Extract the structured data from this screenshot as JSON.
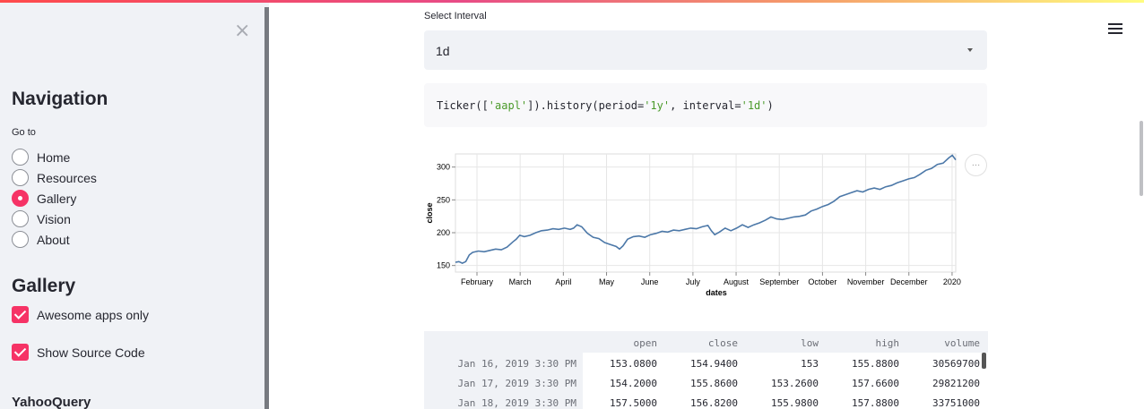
{
  "sidebar": {
    "nav_title": "Navigation",
    "goto_label": "Go to",
    "pages": [
      {
        "label": "Home",
        "selected": false
      },
      {
        "label": "Resources",
        "selected": false
      },
      {
        "label": "Gallery",
        "selected": true
      },
      {
        "label": "Vision",
        "selected": false
      },
      {
        "label": "About",
        "selected": false
      }
    ],
    "gallery_title": "Gallery",
    "awesome_apps_label": "Awesome apps only",
    "show_source_label": "Show Source Code",
    "yahooquery_title": "YahooQuery"
  },
  "main": {
    "interval_label": "Select Interval",
    "interval_value": "1d",
    "code": {
      "prefix": "Ticker([",
      "ticker": "'aapl'",
      "middle": "]).history(period=",
      "period": "'1y'",
      "middle2": ", interval=",
      "interval": "'1d'",
      "suffix": ")"
    },
    "chart_menu_icon": "…"
  },
  "chart_data": {
    "type": "line",
    "xlabel": "dates",
    "ylabel": "close",
    "ylim": [
      140,
      320
    ],
    "yticks": [
      150,
      200,
      250,
      300
    ],
    "xticks": [
      "February",
      "March",
      "April",
      "May",
      "June",
      "July",
      "August",
      "September",
      "October",
      "November",
      "December",
      "2020"
    ],
    "color": "#4c78a8",
    "series": [
      {
        "name": "close",
        "points": [
          [
            0,
            154.9
          ],
          [
            0.3,
            155.9
          ],
          [
            0.6,
            153.5
          ],
          [
            0.9,
            156
          ],
          [
            1.2,
            166
          ],
          [
            1.5,
            170
          ],
          [
            2,
            172
          ],
          [
            2.5,
            171
          ],
          [
            3,
            173
          ],
          [
            3.5,
            175
          ],
          [
            4,
            174
          ],
          [
            4.5,
            178
          ],
          [
            5,
            186
          ],
          [
            5.3,
            190
          ],
          [
            5.6,
            196
          ],
          [
            6,
            194
          ],
          [
            6.5,
            196
          ],
          [
            7,
            200
          ],
          [
            7.5,
            203
          ],
          [
            8,
            204
          ],
          [
            8.5,
            206
          ],
          [
            9,
            205
          ],
          [
            9.5,
            207
          ],
          [
            10,
            205
          ],
          [
            10.3,
            207
          ],
          [
            10.6,
            212
          ],
          [
            11,
            209
          ],
          [
            11.5,
            199
          ],
          [
            12,
            193
          ],
          [
            12.5,
            191
          ],
          [
            13,
            185
          ],
          [
            13.5,
            182
          ],
          [
            14,
            179
          ],
          [
            14.3,
            175
          ],
          [
            14.6,
            180
          ],
          [
            15,
            190
          ],
          [
            15.5,
            194
          ],
          [
            16,
            195
          ],
          [
            16.5,
            193
          ],
          [
            17,
            197
          ],
          [
            17.5,
            199
          ],
          [
            18,
            202
          ],
          [
            18.5,
            201
          ],
          [
            19,
            204
          ],
          [
            19.5,
            203
          ],
          [
            20,
            205
          ],
          [
            20.5,
            207
          ],
          [
            21,
            206
          ],
          [
            21.5,
            209
          ],
          [
            22,
            211
          ],
          [
            22.3,
            203
          ],
          [
            22.6,
            197
          ],
          [
            23,
            201
          ],
          [
            23.5,
            207
          ],
          [
            24,
            203
          ],
          [
            24.5,
            207
          ],
          [
            25,
            212
          ],
          [
            25.5,
            208
          ],
          [
            26,
            212
          ],
          [
            26.5,
            215
          ],
          [
            27,
            219
          ],
          [
            27.5,
            224
          ],
          [
            28,
            221
          ],
          [
            28.5,
            220
          ],
          [
            29,
            222
          ],
          [
            29.5,
            224
          ],
          [
            30,
            225
          ],
          [
            30.5,
            227
          ],
          [
            31,
            233
          ],
          [
            31.5,
            236
          ],
          [
            32,
            240
          ],
          [
            32.5,
            243
          ],
          [
            33,
            248
          ],
          [
            33.5,
            255
          ],
          [
            34,
            258
          ],
          [
            34.5,
            261
          ],
          [
            35,
            264
          ],
          [
            35.5,
            262
          ],
          [
            36,
            266
          ],
          [
            36.5,
            268
          ],
          [
            37,
            266
          ],
          [
            37.5,
            270
          ],
          [
            38,
            272
          ],
          [
            38.5,
            276
          ],
          [
            39,
            279
          ],
          [
            39.5,
            282
          ],
          [
            40,
            284
          ],
          [
            40.5,
            289
          ],
          [
            41,
            295
          ],
          [
            41.5,
            298
          ],
          [
            42,
            304
          ],
          [
            42.5,
            306
          ],
          [
            43,
            314
          ],
          [
            43.3,
            318
          ],
          [
            43.6,
            311
          ]
        ]
      }
    ]
  },
  "table": {
    "columns": [
      "open",
      "close",
      "low",
      "high",
      "volume"
    ],
    "rows": [
      {
        "index": "Jan 16, 2019 3:30 PM",
        "values": [
          "153.0800",
          "154.9400",
          "153",
          "155.8800",
          "30569700"
        ]
      },
      {
        "index": "Jan 17, 2019 3:30 PM",
        "values": [
          "154.2000",
          "155.8600",
          "153.2600",
          "157.6600",
          "29821200"
        ]
      },
      {
        "index": "Jan 18, 2019 3:30 PM",
        "values": [
          "157.5000",
          "156.8200",
          "155.9800",
          "157.8800",
          "33751000"
        ]
      }
    ]
  }
}
